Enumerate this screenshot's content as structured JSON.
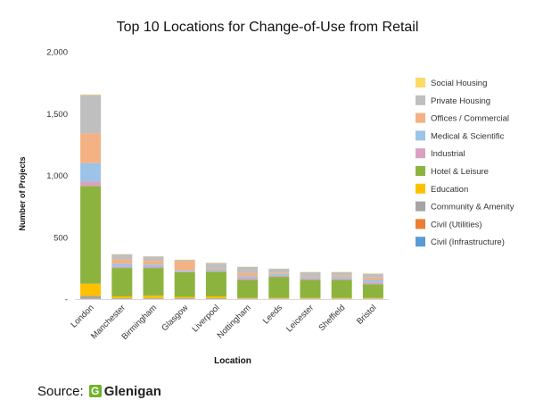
{
  "source": {
    "label": "Source:",
    "logo_text": "Glenigan"
  },
  "chart_data": {
    "type": "bar",
    "stacked": true,
    "title": "Top 10 Locations for Change-of-Use from Retail",
    "xlabel": "Location",
    "ylabel": "Number of Projects",
    "ylim": [
      0,
      2000
    ],
    "yticks": [
      0,
      500,
      1000,
      1500,
      2000
    ],
    "ytick_labels": [
      "-",
      "500",
      "1,000",
      "1,500",
      "2,000"
    ],
    "grid": false,
    "legend_position": "right",
    "categories": [
      "London",
      "Manchester",
      "Birmingham",
      "Glasgow",
      "Liverpool",
      "Nottingham",
      "Leeds",
      "Leicester",
      "Sheffield",
      "Bristol"
    ],
    "series": [
      {
        "name": "Civil (Infrastructure)",
        "color": "#5b9bd5",
        "values": [
          2,
          1,
          1,
          1,
          1,
          1,
          1,
          1,
          1,
          1
        ]
      },
      {
        "name": "Civil (Utilities)",
        "color": "#ed7d31",
        "values": [
          3,
          1,
          1,
          1,
          1,
          1,
          1,
          1,
          1,
          1
        ]
      },
      {
        "name": "Community & Amenity",
        "color": "#a5a5a5",
        "values": [
          20,
          5,
          5,
          5,
          5,
          3,
          3,
          3,
          3,
          3
        ]
      },
      {
        "name": "Education",
        "color": "#ffc000",
        "values": [
          100,
          15,
          20,
          10,
          15,
          5,
          5,
          5,
          5,
          5
        ]
      },
      {
        "name": "Hotel & Leisure",
        "color": "#8db33f",
        "values": [
          790,
          230,
          225,
          200,
          200,
          145,
          170,
          145,
          145,
          110
        ]
      },
      {
        "name": "Industrial",
        "color": "#d9a2c0",
        "values": [
          35,
          10,
          8,
          5,
          5,
          15,
          10,
          8,
          8,
          15
        ]
      },
      {
        "name": "Medical & Scientific",
        "color": "#9dc3e6",
        "values": [
          150,
          25,
          20,
          10,
          15,
          15,
          15,
          15,
          15,
          20
        ]
      },
      {
        "name": "Offices / Commercial",
        "color": "#f4b183",
        "values": [
          240,
          35,
          30,
          75,
          10,
          25,
          10,
          10,
          15,
          20
        ]
      },
      {
        "name": "Private Housing",
        "color": "#bfbfbf",
        "values": [
          310,
          40,
          35,
          10,
          40,
          50,
          30,
          30,
          25,
          30
        ]
      },
      {
        "name": "Social Housing",
        "color": "#ffd966",
        "values": [
          5,
          2,
          2,
          2,
          2,
          2,
          2,
          2,
          2,
          2
        ]
      }
    ]
  }
}
